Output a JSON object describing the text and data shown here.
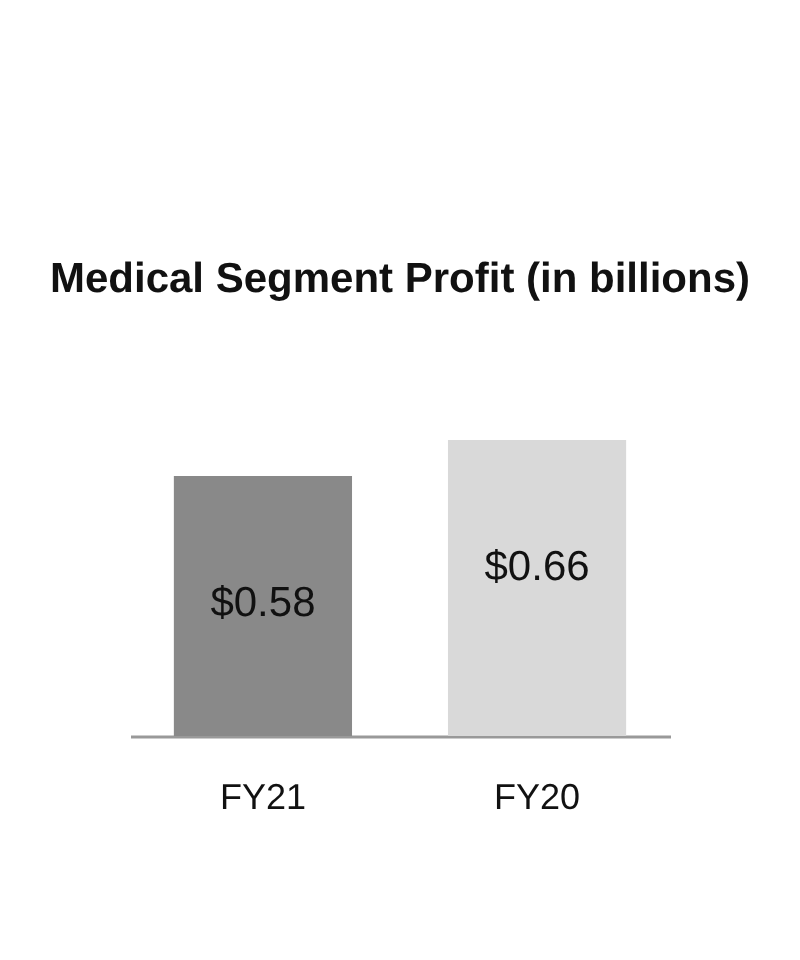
{
  "chart_data": {
    "type": "bar",
    "title": "Medical Segment\nProfit\n(in billions)",
    "categories": [
      "FY21",
      "FY20"
    ],
    "values": [
      0.58,
      0.66
    ],
    "colors": [
      "#898989",
      "#d9d9d9"
    ],
    "value_labels": [
      "$0.58",
      "$0.66"
    ]
  }
}
